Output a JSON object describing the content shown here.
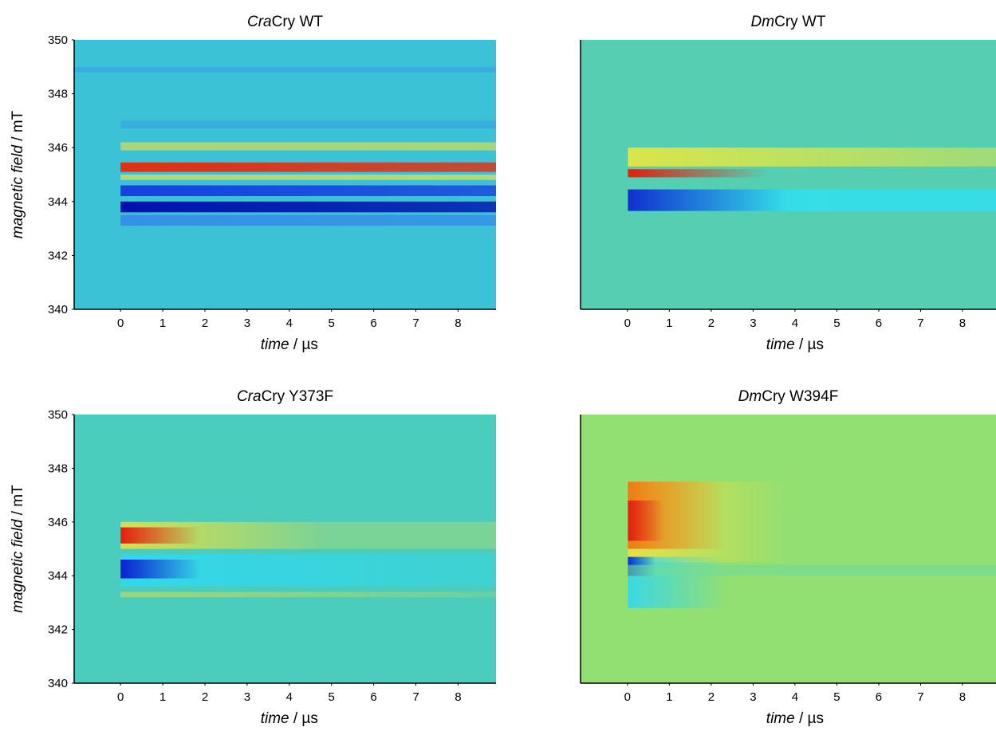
{
  "chart_data": [
    {
      "type": "heatmap",
      "title": [
        "Cra",
        "Cry WT"
      ],
      "xlabel": [
        "time",
        " / µs"
      ],
      "ylabel": [
        "magnetic field",
        " / mT"
      ],
      "xlim": [
        -1.1,
        8.9
      ],
      "ylim": [
        340,
        350
      ],
      "xticks": [
        0,
        1,
        2,
        3,
        4,
        5,
        6,
        7,
        8
      ],
      "yticks": [
        340,
        342,
        344,
        346,
        348,
        350
      ],
      "colormap": "jet"
    },
    {
      "type": "heatmap",
      "title": [
        "Dm",
        "Cry WT"
      ],
      "xlabel": [
        "time",
        " / µs"
      ],
      "xlim": [
        -1.12,
        8.8
      ],
      "ylim": [
        340,
        350
      ],
      "xticks": [
        0,
        1,
        2,
        3,
        4,
        5,
        6,
        7,
        8
      ],
      "colormap": "jet"
    },
    {
      "type": "heatmap",
      "title": [
        "Cra",
        "Cry Y373F"
      ],
      "xlabel": [
        "time",
        " / µs"
      ],
      "ylabel": [
        "magnetic field",
        " / mT"
      ],
      "xlim": [
        -1.1,
        8.9
      ],
      "ylim": [
        340,
        350
      ],
      "xticks": [
        0,
        1,
        2,
        3,
        4,
        5,
        6,
        7,
        8
      ],
      "yticks": [
        340,
        342,
        344,
        346,
        348,
        350
      ],
      "colormap": "jet"
    },
    {
      "type": "heatmap",
      "title": [
        "Dm",
        "Cry W394F"
      ],
      "xlabel": [
        "time",
        " / µs"
      ],
      "xlim": [
        -1.12,
        8.8
      ],
      "ylim": [
        340,
        350
      ],
      "xticks": [
        0,
        1,
        2,
        3,
        4,
        5,
        6,
        7,
        8
      ],
      "colormap": "jet"
    }
  ]
}
